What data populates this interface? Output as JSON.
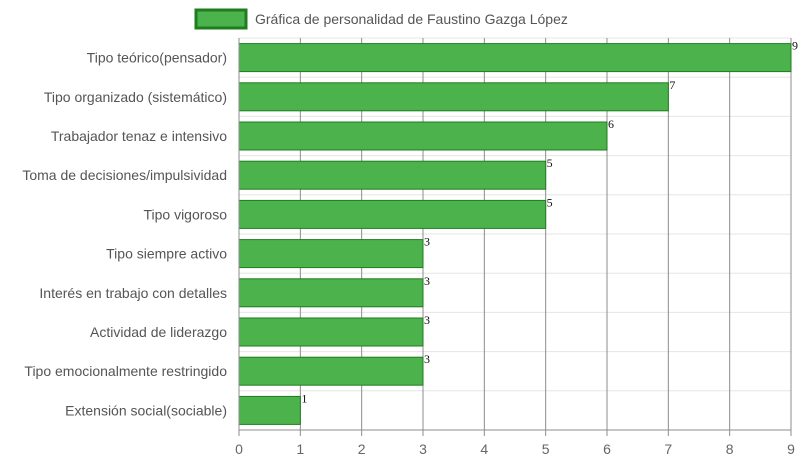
{
  "chart_data": {
    "type": "bar",
    "orientation": "horizontal",
    "legend": {
      "position": "top"
    },
    "categories": [
      "Tipo teórico(pensador)",
      "Tipo organizado (sistemático)",
      "Trabajador tenaz e intensivo",
      "Toma de decisiones/impulsividad",
      "Tipo vigoroso",
      "Tipo siempre activo",
      "Interés en trabajo con detalles",
      "Actividad de liderazgo",
      "Tipo emocionalmente restringido",
      "Extensión social(sociable)"
    ],
    "series": [
      {
        "name": "Gráfica de personalidad de Faustino Gazga López",
        "values": [
          9,
          7,
          6,
          5,
          5,
          3,
          3,
          3,
          3,
          1
        ],
        "color": "#4cb34c",
        "border_color": "#1e7d1e"
      }
    ],
    "xlim": [
      0,
      9
    ],
    "x_ticks": [
      "0",
      "1",
      "2",
      "3",
      "4",
      "5",
      "6",
      "7",
      "8",
      "9"
    ],
    "grid": true,
    "data_labels": true
  }
}
